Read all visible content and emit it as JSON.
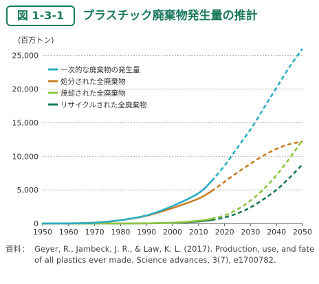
{
  "figure_label": "図 1-3-1",
  "figure_title": "プラスチック廃棄物発生量の推計",
  "unit_label": "(百万トン)",
  "source_label": "資料：",
  "source_text": "Geyer, R., Jambeck, J. R., & Law, K. L. (2017). Production, use, and fate of all plastics ever made. Science advances, 3(7), e1700782.",
  "chart_data": {
    "type": "line",
    "x": [
      1950,
      1960,
      1970,
      1980,
      1990,
      2000,
      2010,
      2015,
      2020,
      2025,
      2030,
      2035,
      2040,
      2045,
      2050
    ],
    "xticks": [
      1950,
      1960,
      1970,
      1980,
      1990,
      2000,
      2010,
      2020,
      2030,
      2040,
      2050
    ],
    "yticks": [
      0,
      5000,
      10000,
      15000,
      20000,
      25000
    ],
    "ytick_labels": [
      "0",
      "5,000",
      "10,000",
      "15,000",
      "20,000",
      "25,000"
    ],
    "xlim": [
      1950,
      2050
    ],
    "ylim": [
      0,
      26500
    ],
    "grid": "horizontal-dashed",
    "legend_position": "top-left",
    "solid_until": 2015,
    "series": [
      {
        "name": "一次的な廃棄物の発生量",
        "color": "#2aaec4",
        "values": [
          0,
          20,
          120,
          500,
          1200,
          2600,
          4500,
          6300,
          8600,
          11300,
          14000,
          17100,
          20200,
          23300,
          26000
        ]
      },
      {
        "name": "処分された全廃棄物",
        "color": "#c87d23",
        "values": [
          0,
          20,
          120,
          480,
          1150,
          2300,
          3700,
          4800,
          6200,
          7600,
          8900,
          10100,
          11100,
          11800,
          12200
        ]
      },
      {
        "name": "焼却された全廃棄物",
        "color": "#8cc63f",
        "values": [
          0,
          0,
          0,
          0,
          20,
          120,
          400,
          700,
          1200,
          2100,
          3400,
          5100,
          7200,
          9700,
          12400
        ]
      },
      {
        "name": "リサイクルされた全廃棄物",
        "color": "#1a7a5e",
        "values": [
          0,
          0,
          0,
          0,
          20,
          100,
          300,
          500,
          900,
          1500,
          2400,
          3600,
          5000,
          6800,
          8800
        ]
      }
    ]
  }
}
